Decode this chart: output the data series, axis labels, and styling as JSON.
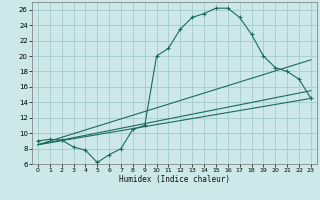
{
  "background_color": "#cce8e8",
  "grid_color": "#aacfcf",
  "line_color": "#1a6b5a",
  "xlabel": "Humidex (Indice chaleur)",
  "xlim": [
    -0.5,
    23.5
  ],
  "ylim": [
    6,
    27
  ],
  "yticks": [
    6,
    8,
    10,
    12,
    14,
    16,
    18,
    20,
    22,
    24,
    26
  ],
  "xticks": [
    0,
    1,
    2,
    3,
    4,
    5,
    6,
    7,
    8,
    9,
    10,
    11,
    12,
    13,
    14,
    15,
    16,
    17,
    18,
    19,
    20,
    21,
    22,
    23
  ],
  "curve1_x": [
    0,
    1,
    2,
    3,
    4,
    5,
    6,
    7,
    8,
    9,
    10,
    11,
    12,
    13,
    14,
    15,
    16,
    17,
    18,
    19,
    20,
    21,
    22,
    23
  ],
  "curve1_y": [
    9.0,
    9.2,
    9.1,
    8.2,
    7.8,
    6.2,
    7.2,
    8.0,
    10.5,
    11.0,
    20.0,
    21.0,
    23.5,
    25.0,
    25.5,
    26.2,
    26.2,
    25.0,
    22.8,
    20.0,
    18.5,
    18.0,
    17.0,
    14.5
  ],
  "line1_x": [
    0,
    23
  ],
  "line1_y": [
    8.5,
    19.5
  ],
  "line2_x": [
    0,
    23
  ],
  "line2_y": [
    8.5,
    14.5
  ],
  "line3_x": [
    0,
    23
  ],
  "line3_y": [
    8.5,
    15.5
  ]
}
